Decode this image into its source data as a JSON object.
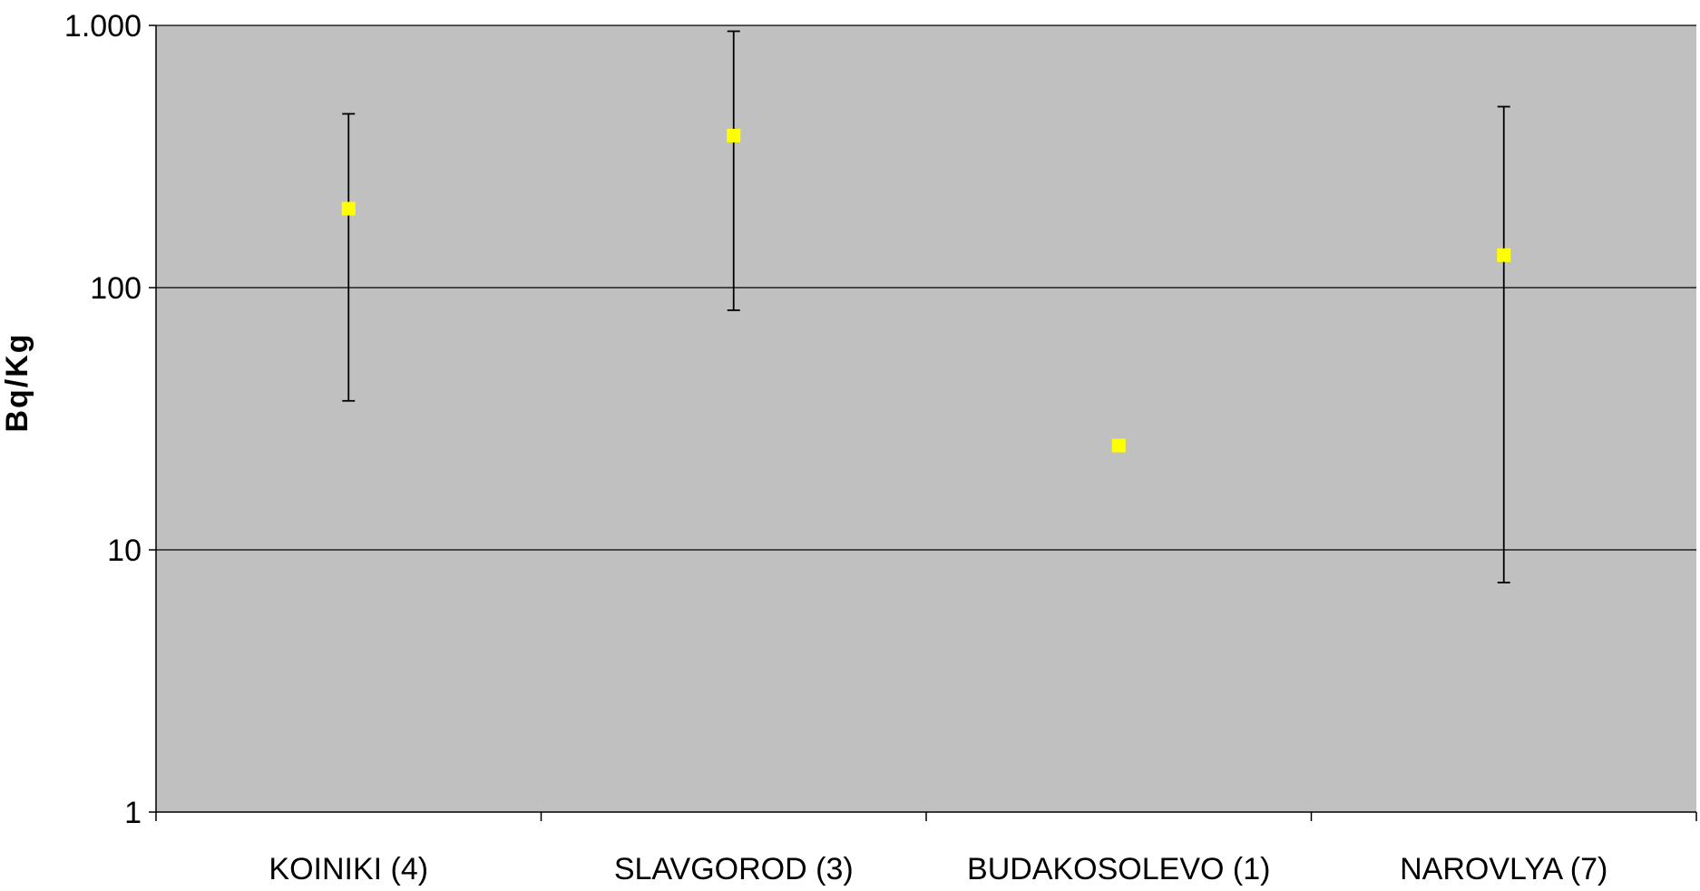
{
  "chart_data": {
    "type": "scatter",
    "title": "",
    "xlabel": "",
    "ylabel": "Bq/Kg",
    "yscale": "log",
    "ylim": [
      1,
      1000
    ],
    "yticks": [
      {
        "value": 1,
        "label": "1"
      },
      {
        "value": 10,
        "label": "10"
      },
      {
        "value": 100,
        "label": "100"
      },
      {
        "value": 1000,
        "label": "1.000"
      }
    ],
    "grid": "horizontal major gridlines",
    "legend": "none",
    "categories": [
      "KOINIKI (4)",
      "SLAVGOROD (3)",
      "BUDAKOSOLEVO (1)",
      "NAROVLYA (7)"
    ],
    "series": [
      {
        "values": [
          200,
          380,
          25,
          133
        ],
        "error_low": [
          37,
          82,
          null,
          7.5
        ],
        "error_high": [
          460,
          950,
          null,
          490
        ]
      }
    ],
    "colors": {
      "plot_background": "#c0c0c0",
      "marker": "#ffff00",
      "error_bar": "#000000",
      "gridline": "#000000"
    }
  }
}
